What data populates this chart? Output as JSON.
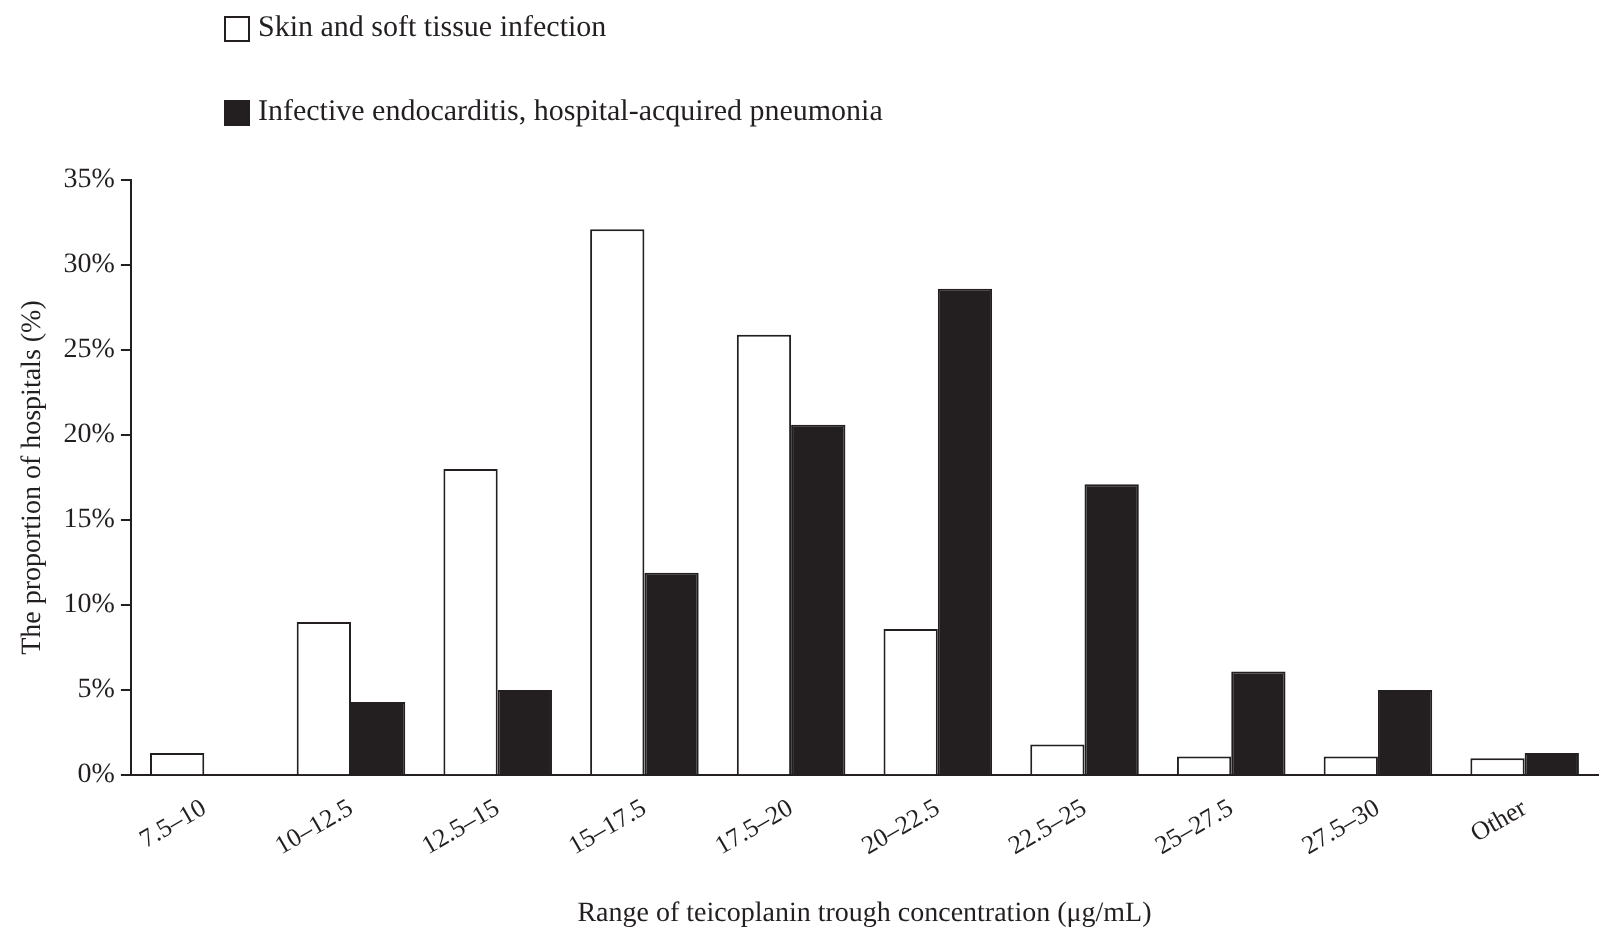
{
  "chart_data": {
    "type": "bar",
    "xlabel": "Range of teicoplanin trough concentration (μg/mL)",
    "ylabel": "The proportion of hospitals (%)",
    "categories": [
      "7.5–10",
      "10–12.5",
      "12.5–15",
      "15–17.5",
      "17.5–20",
      "20–22.5",
      "22.5–25",
      "25–27.5",
      "27.5–30",
      "Other"
    ],
    "series": [
      {
        "name": "Skin and soft tissue infection",
        "color": "#ffffff",
        "values": [
          1.3,
          9,
          18,
          32.1,
          25.9,
          8.6,
          1.8,
          1.1,
          1.1,
          1.0
        ]
      },
      {
        "name": "Infective endocarditis, hospital-acquired pneumonia",
        "color": "#231f20",
        "values": [
          0,
          4.3,
          5,
          11.9,
          20.6,
          28.6,
          17.1,
          6.1,
          5.0,
          1.3
        ]
      }
    ],
    "ylim": [
      0,
      35
    ],
    "yticks": [
      {
        "value": 0,
        "label": "0%"
      },
      {
        "value": 5,
        "label": "5%"
      },
      {
        "value": 10,
        "label": "10%"
      },
      {
        "value": 15,
        "label": "15%"
      },
      {
        "value": 20,
        "label": "20%"
      },
      {
        "value": 25,
        "label": "25%"
      },
      {
        "value": 30,
        "label": "30%"
      },
      {
        "value": 35,
        "label": "35%"
      }
    ],
    "grid": false,
    "legend": "top left"
  }
}
